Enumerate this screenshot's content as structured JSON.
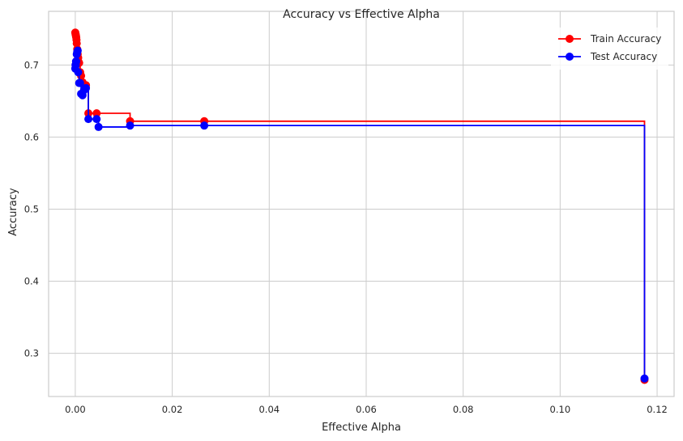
{
  "chart_data": {
    "type": "line",
    "title": "Accuracy vs Effective Alpha",
    "xlabel": "Effective Alpha",
    "ylabel": "Accuracy",
    "xlim": [
      -0.0055,
      0.1235
    ],
    "ylim": [
      0.24,
      0.7745
    ],
    "xticks": [
      0.0,
      0.02,
      0.04,
      0.06,
      0.08,
      0.1,
      0.12
    ],
    "xtick_labels": [
      "0.00",
      "0.02",
      "0.04",
      "0.06",
      "0.08",
      "0.10",
      "0.12"
    ],
    "yticks": [
      0.3,
      0.4,
      0.5,
      0.6,
      0.7
    ],
    "ytick_labels": [
      "0.3",
      "0.4",
      "0.5",
      "0.6",
      "0.7"
    ],
    "grid": true,
    "legend_position": "top-right",
    "drawstyle": "steps-post",
    "series": [
      {
        "name": "Train Accuracy",
        "color": "#ff0000",
        "x": [
          0.0,
          5e-05,
          0.0001,
          0.00015,
          0.0002,
          0.00025,
          0.0003,
          0.0004,
          0.0005,
          0.0006,
          0.0008,
          0.001,
          0.0012,
          0.0015,
          0.0018,
          0.0022,
          0.0027,
          0.0044,
          0.0113,
          0.0266,
          0.1174
        ],
        "y": [
          0.745,
          0.743,
          0.742,
          0.74,
          0.738,
          0.735,
          0.73,
          0.722,
          0.715,
          0.71,
          0.703,
          0.69,
          0.685,
          0.676,
          0.673,
          0.672,
          0.633,
          0.633,
          0.622,
          0.622,
          0.263
        ]
      },
      {
        "name": "Test Accuracy",
        "color": "#0000ff",
        "x": [
          0.0,
          5e-05,
          0.0001,
          0.00015,
          0.0002,
          0.0003,
          0.0004,
          0.0005,
          0.0006,
          0.0008,
          0.001,
          0.0012,
          0.0015,
          0.0018,
          0.0022,
          0.0027,
          0.0044,
          0.0048,
          0.0113,
          0.0266,
          0.1174
        ],
        "y": [
          0.695,
          0.7,
          0.7,
          0.705,
          0.705,
          0.715,
          0.718,
          0.72,
          0.69,
          0.675,
          0.675,
          0.66,
          0.658,
          0.665,
          0.668,
          0.625,
          0.625,
          0.614,
          0.616,
          0.616,
          0.265
        ]
      }
    ]
  }
}
